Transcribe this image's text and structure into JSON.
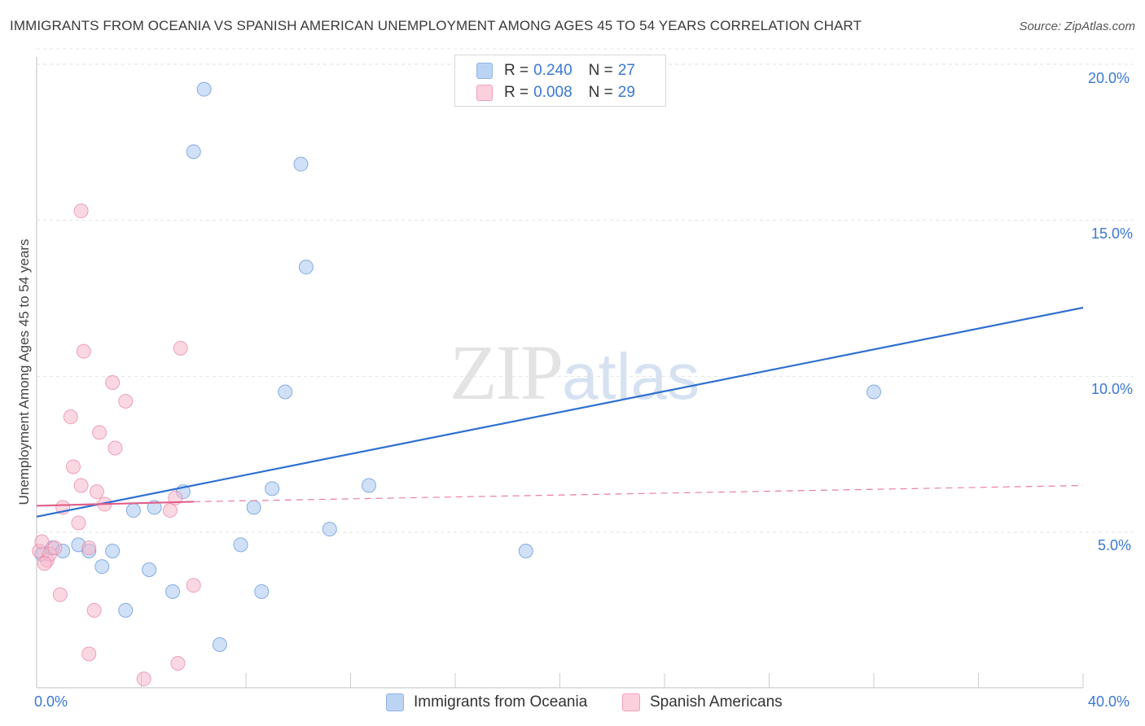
{
  "header": {
    "title": "IMMIGRANTS FROM OCEANIA VS SPANISH AMERICAN UNEMPLOYMENT AMONG AGES 45 TO 54 YEARS CORRELATION CHART",
    "source": "Source: ZipAtlas.com"
  },
  "watermark": {
    "zip": "ZIP",
    "atlas": "atlas"
  },
  "legend": {
    "rows": [
      {
        "r_label": "R =",
        "r_value": "0.240",
        "n_label": "N =",
        "n_value": "27",
        "color": "#a9c8f0"
      },
      {
        "r_label": "R =",
        "r_value": "0.008",
        "n_label": "N =",
        "n_value": "29",
        "color": "#f6b8ca"
      }
    ]
  },
  "bottom_legend": {
    "series1": "Immigrants from Oceania",
    "series2": "Spanish Americans"
  },
  "axes": {
    "y_label": "Unemployment Among Ages 45 to 54 years",
    "x_min_label": "0.0%",
    "x_max_label": "40.0%",
    "y_ticks": [
      "20.0%",
      "15.0%",
      "10.0%",
      "5.0%"
    ]
  },
  "chart_data": {
    "type": "scatter",
    "title": "IMMIGRANTS FROM OCEANIA VS SPANISH AMERICAN UNEMPLOYMENT AMONG AGES 45 TO 54 YEARS CORRELATION CHART",
    "xlabel": "",
    "ylabel": "Unemployment Among Ages 45 to 54 years",
    "xlim": [
      0,
      40
    ],
    "ylim": [
      0,
      20.5
    ],
    "y_gridlines": [
      5,
      10,
      15,
      20
    ],
    "series": [
      {
        "name": "Immigrants from Oceania",
        "color": "#5a8fd8",
        "fill": "#a9c8f0",
        "r": 0.24,
        "n": 27,
        "trend": {
          "x": [
            0,
            40
          ],
          "y": [
            5.5,
            12.2
          ],
          "style": "solid"
        },
        "points": [
          [
            0.2,
            4.3
          ],
          [
            0.6,
            4.5
          ],
          [
            1.0,
            4.4
          ],
          [
            1.6,
            4.6
          ],
          [
            2.0,
            4.4
          ],
          [
            2.5,
            3.9
          ],
          [
            2.9,
            4.4
          ],
          [
            3.4,
            2.5
          ],
          [
            3.7,
            5.7
          ],
          [
            4.3,
            3.8
          ],
          [
            4.5,
            5.8
          ],
          [
            5.2,
            3.1
          ],
          [
            5.6,
            6.3
          ],
          [
            6.0,
            17.2
          ],
          [
            6.4,
            19.2
          ],
          [
            7.0,
            1.4
          ],
          [
            7.8,
            4.6
          ],
          [
            8.6,
            3.1
          ],
          [
            8.3,
            5.8
          ],
          [
            9.0,
            6.4
          ],
          [
            9.5,
            9.5
          ],
          [
            10.1,
            16.8
          ],
          [
            10.3,
            13.5
          ],
          [
            11.2,
            5.1
          ],
          [
            12.7,
            6.5
          ],
          [
            18.7,
            4.4
          ],
          [
            32.0,
            9.5
          ]
        ]
      },
      {
        "name": "Spanish Americans",
        "color": "#e87fa2",
        "fill": "#f6b8ca",
        "r": 0.008,
        "n": 29,
        "trend_solid": {
          "x": [
            0,
            6.0
          ],
          "y": [
            5.85,
            5.98
          ]
        },
        "trend_dashed": {
          "x": [
            6.0,
            40
          ],
          "y": [
            5.98,
            6.5
          ]
        },
        "points": [
          [
            0.1,
            4.4
          ],
          [
            0.4,
            4.1
          ],
          [
            0.5,
            4.3
          ],
          [
            0.7,
            4.5
          ],
          [
            0.9,
            3.0
          ],
          [
            1.0,
            5.8
          ],
          [
            1.3,
            8.7
          ],
          [
            1.4,
            7.1
          ],
          [
            1.6,
            5.3
          ],
          [
            1.7,
            6.5
          ],
          [
            1.7,
            15.3
          ],
          [
            1.8,
            10.8
          ],
          [
            2.0,
            4.5
          ],
          [
            2.0,
            1.1
          ],
          [
            2.2,
            2.5
          ],
          [
            2.3,
            6.3
          ],
          [
            2.4,
            8.2
          ],
          [
            2.6,
            5.9
          ],
          [
            2.9,
            9.8
          ],
          [
            3.0,
            7.7
          ],
          [
            3.4,
            9.2
          ],
          [
            4.1,
            0.3
          ],
          [
            5.1,
            5.7
          ],
          [
            5.3,
            6.1
          ],
          [
            5.4,
            0.8
          ],
          [
            5.5,
            10.9
          ],
          [
            6.0,
            3.3
          ],
          [
            0.2,
            4.7
          ],
          [
            0.3,
            4.0
          ]
        ]
      }
    ]
  }
}
